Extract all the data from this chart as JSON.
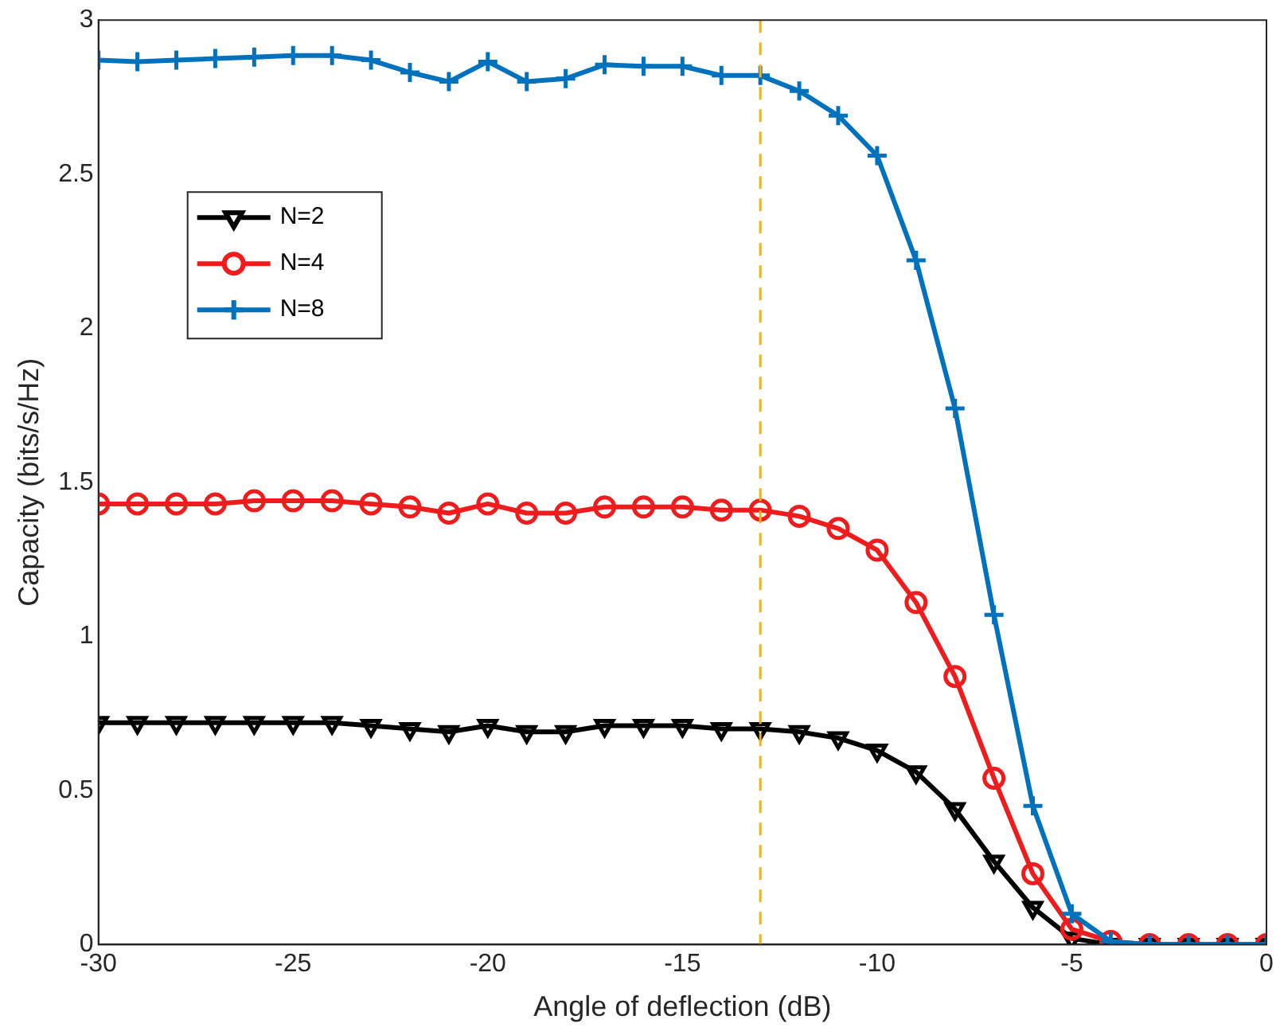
{
  "chart_data": {
    "type": "line",
    "xlabel": "Angle of deflection (dB)",
    "ylabel": "Capacity (bits/s/Hz)",
    "x": [
      -30,
      -29,
      -28,
      -27,
      -26,
      -25,
      -24,
      -23,
      -22,
      -21,
      -20,
      -19,
      -18,
      -17,
      -16,
      -15,
      -14,
      -13,
      -12,
      -11,
      -10,
      -9,
      -8,
      -7,
      -6,
      -5,
      -4,
      -3,
      -2,
      -1,
      0
    ],
    "series": [
      {
        "name": "N=2",
        "color": "#000000",
        "marker": "triangle",
        "values": [
          0.72,
          0.72,
          0.72,
          0.72,
          0.72,
          0.72,
          0.72,
          0.71,
          0.7,
          0.69,
          0.71,
          0.69,
          0.69,
          0.71,
          0.71,
          0.71,
          0.7,
          0.7,
          0.69,
          0.67,
          0.63,
          0.56,
          0.44,
          0.27,
          0.12,
          0.02,
          0,
          0,
          0,
          0,
          0
        ]
      },
      {
        "name": "N=4",
        "color": "#ee1c1c",
        "marker": "circle",
        "values": [
          1.43,
          1.43,
          1.43,
          1.43,
          1.44,
          1.44,
          1.44,
          1.43,
          1.42,
          1.4,
          1.43,
          1.4,
          1.4,
          1.42,
          1.42,
          1.42,
          1.41,
          1.41,
          1.39,
          1.35,
          1.28,
          1.11,
          0.87,
          0.54,
          0.23,
          0.05,
          0.01,
          0,
          0,
          0,
          0
        ]
      },
      {
        "name": "N=8",
        "color": "#0072bd",
        "marker": "cross",
        "values": [
          2.87,
          2.865,
          2.87,
          2.875,
          2.88,
          2.885,
          2.885,
          2.87,
          2.83,
          2.8,
          2.865,
          2.8,
          2.81,
          2.855,
          2.85,
          2.85,
          2.82,
          2.82,
          2.77,
          2.69,
          2.56,
          2.22,
          1.74,
          1.07,
          0.45,
          0.1,
          0.01,
          0,
          0,
          0,
          0
        ]
      }
    ],
    "xlim": [
      -30,
      0
    ],
    "xticks": [
      -30,
      -25,
      -20,
      -15,
      -10,
      -5,
      0
    ],
    "ylim": [
      0,
      3
    ],
    "yticks": [
      0,
      0.5,
      1,
      1.5,
      2,
      2.5,
      3
    ],
    "ref_lines": [
      {
        "axis": "x",
        "value": -13,
        "color": "#edb120",
        "line_style": "dashed"
      }
    ],
    "legend": "top left",
    "line_style": "solid",
    "grid": false
  }
}
